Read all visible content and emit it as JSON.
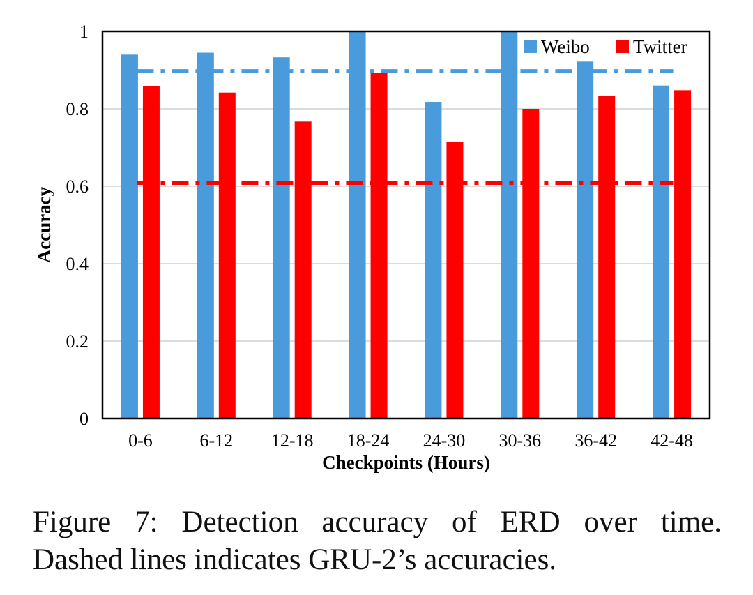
{
  "chart_data": {
    "type": "bar",
    "categories": [
      "0-6",
      "6-12",
      "12-18",
      "18-24",
      "24-30",
      "30-36",
      "36-42",
      "42-48"
    ],
    "series": [
      {
        "name": "Weibo",
        "color": "#4a9bdc",
        "values": [
          0.94,
          0.945,
          0.933,
          1.0,
          0.818,
          1.0,
          0.922,
          0.86
        ]
      },
      {
        "name": "Twitter",
        "color": "#ff0000",
        "values": [
          0.858,
          0.842,
          0.767,
          0.892,
          0.714,
          0.8,
          0.833,
          0.848
        ]
      }
    ],
    "reference_lines": [
      {
        "series": "Weibo",
        "value": 0.898,
        "style": "dash-dot",
        "color": "#4a9bdc"
      },
      {
        "series": "Twitter",
        "value": 0.608,
        "style": "dash-dot",
        "color": "#ff0000"
      }
    ],
    "xlabel": "Checkpoints (Hours)",
    "ylabel": "Accuracy",
    "ylim": [
      0,
      1
    ],
    "yticks": [
      "0",
      "0.2",
      "0.4",
      "0.6",
      "0.8",
      "1"
    ],
    "grid": true,
    "legend_position": "top-right"
  },
  "caption": {
    "line1": "Figure 7:   Detection accuracy of ERD over time.",
    "line2": "Dashed lines indicates GRU-2’s accuracies."
  }
}
